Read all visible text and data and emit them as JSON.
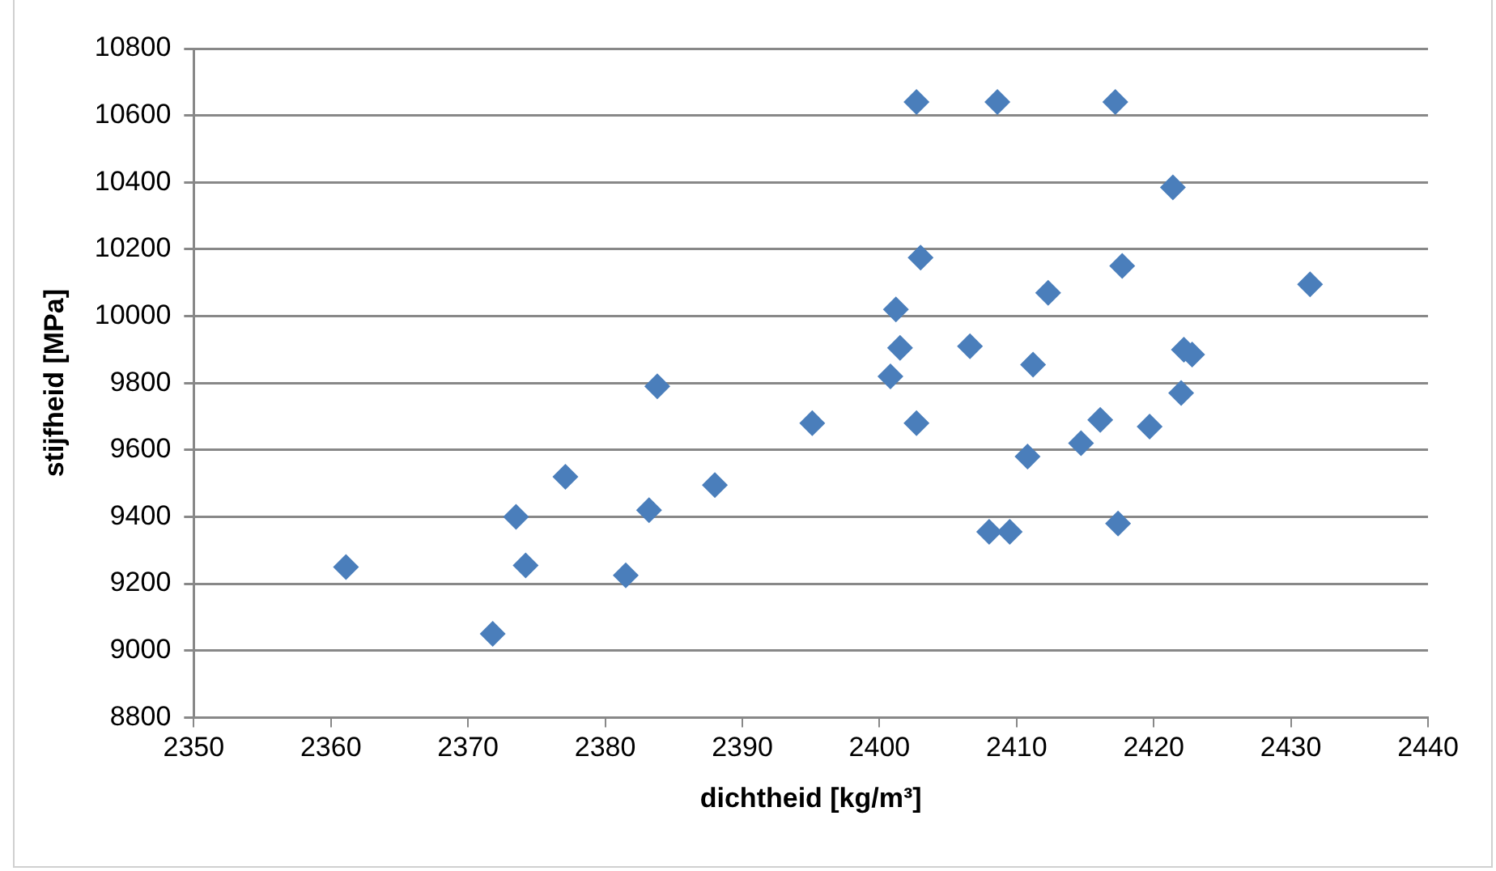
{
  "chart_data": {
    "type": "scatter",
    "xlabel": "dichtheid [kg/m³]",
    "ylabel": "stijfheid [MPa]",
    "x": [
      2361.1,
      2371.8,
      2373.5,
      2374.2,
      2377.1,
      2381.5,
      2383.2,
      2383.8,
      2388.0,
      2395.1,
      2402.7,
      2408.6,
      2417.2,
      2421.4,
      2403.0,
      2417.7,
      2431.4,
      2412.3,
      2401.2,
      2401.5,
      2406.6,
      2411.2,
      2400.8,
      2422.2,
      2422.8,
      2422.0,
      2402.7,
      2416.1,
      2419.7,
      2414.7,
      2410.8,
      2408.0,
      2409.5,
      2417.4
    ],
    "series": [
      {
        "color": "#4a7ebb",
        "values": [
          9250,
          9050,
          9400,
          9255,
          9520,
          9225,
          9420,
          9790,
          9495,
          9680,
          10640,
          10640,
          10640,
          10385,
          10175,
          10150,
          10095,
          10070,
          10020,
          9905,
          9910,
          9855,
          9820,
          9900,
          9885,
          9770,
          9680,
          9690,
          9670,
          9620,
          9580,
          9355,
          9355,
          9380
        ]
      }
    ],
    "xlim": [
      2350,
      2440
    ],
    "xticks": [
      2350,
      2360,
      2370,
      2380,
      2390,
      2400,
      2410,
      2420,
      2430,
      2440
    ],
    "ylim": [
      8800,
      10800
    ],
    "yticks": [
      8800,
      9000,
      9200,
      9400,
      9600,
      9800,
      10000,
      10200,
      10400,
      10600,
      10800
    ],
    "grid": "y",
    "legend": false,
    "marker": "diamond"
  }
}
